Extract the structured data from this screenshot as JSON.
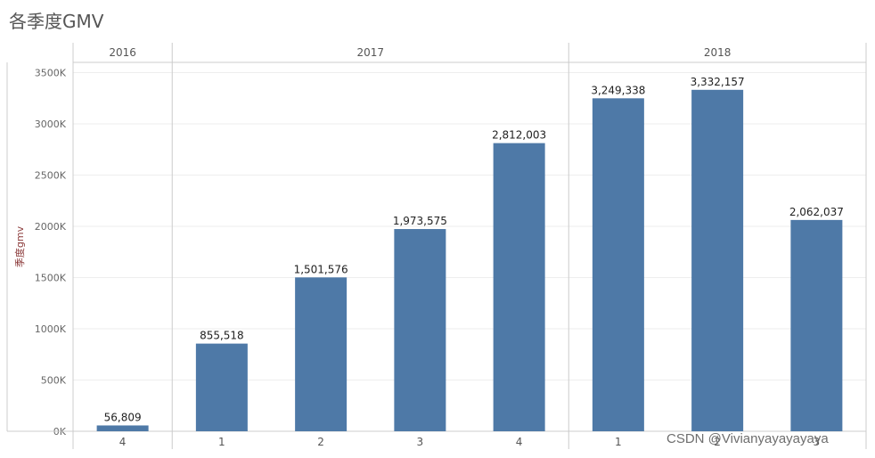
{
  "chart_data": {
    "type": "bar",
    "title": "各季度GMV",
    "ylabel": "季度gmv",
    "ylim": [
      0,
      3600000
    ],
    "yticks": [
      {
        "value": 0,
        "label": "0K"
      },
      {
        "value": 500000,
        "label": "500K"
      },
      {
        "value": 1000000,
        "label": "1000K"
      },
      {
        "value": 1500000,
        "label": "1500K"
      },
      {
        "value": 2000000,
        "label": "2000K"
      },
      {
        "value": 2500000,
        "label": "2500K"
      },
      {
        "value": 3000000,
        "label": "3000K"
      },
      {
        "value": 3500000,
        "label": "3500K"
      }
    ],
    "years": [
      {
        "label": "2016",
        "count": 1
      },
      {
        "label": "2017",
        "count": 4
      },
      {
        "label": "2018",
        "count": 3
      }
    ],
    "bars": [
      {
        "year": "2016",
        "quarter": "4",
        "value": 56809,
        "label": "56,809"
      },
      {
        "year": "2017",
        "quarter": "1",
        "value": 855518,
        "label": "855,518"
      },
      {
        "year": "2017",
        "quarter": "2",
        "value": 1501576,
        "label": "1,501,576"
      },
      {
        "year": "2017",
        "quarter": "3",
        "value": 1973575,
        "label": "1,973,575"
      },
      {
        "year": "2017",
        "quarter": "4",
        "value": 2812003,
        "label": "2,812,003"
      },
      {
        "year": "2018",
        "quarter": "1",
        "value": 3249338,
        "label": "3,249,338"
      },
      {
        "year": "2018",
        "quarter": "2",
        "value": 3332157,
        "label": "3,332,157"
      },
      {
        "year": "2018",
        "quarter": "3",
        "value": 2062037,
        "label": "2,062,037"
      }
    ],
    "colors": {
      "bar": "#4e79a7",
      "grid": "#eeeeee",
      "axis": "#cccccc"
    }
  },
  "watermark": "CSDN @Vivianyayayayaya"
}
